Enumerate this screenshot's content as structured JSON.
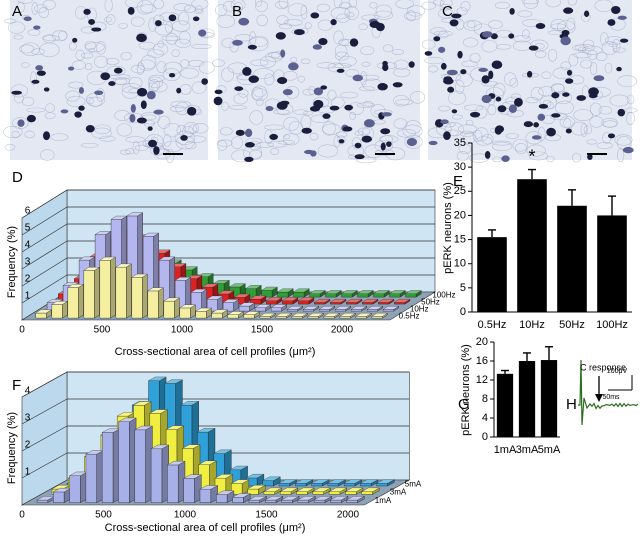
{
  "images": [
    {
      "label": "A"
    },
    {
      "label": "B"
    },
    {
      "label": "C"
    }
  ],
  "chart_data": [
    {
      "type": "bar3d",
      "label": "D",
      "y_label": "Frequency (%)",
      "x_label": "Cross-sectional area of cell profiles (μm²)",
      "x": [
        100,
        200,
        300,
        400,
        500,
        600,
        700,
        800,
        900,
        1000,
        1100,
        1200,
        1300,
        1400,
        1500,
        1600,
        1700,
        1800,
        1900,
        2000,
        2100,
        2200
      ],
      "xlim": [
        0,
        2300
      ],
      "xticks": [
        0,
        500,
        1000,
        1500,
        2000
      ],
      "ylim": [
        0,
        6
      ],
      "yticks": [
        1,
        2,
        3,
        4,
        5,
        6
      ],
      "grid": true,
      "series": [
        {
          "name": "0.5Hz",
          "color": "#f4efa0",
          "values": [
            0.3,
            0.8,
            1.8,
            2.8,
            3.4,
            3.0,
            2.4,
            1.6,
            1.0,
            0.6,
            0.4,
            0.3,
            0.2,
            0.2,
            0.1,
            0.1,
            0.1,
            0.1,
            0.1,
            0.1,
            0.1,
            0.1
          ]
        },
        {
          "name": "10Hz",
          "color": "#b4b6f0",
          "values": [
            0.5,
            1.5,
            3.0,
            4.5,
            5.4,
            5.6,
            4.4,
            3.0,
            1.8,
            1.1,
            0.7,
            0.5,
            0.3,
            0.2,
            0.2,
            0.1,
            0.1,
            0.1,
            0.1,
            0.1,
            0.1,
            0.1
          ]
        },
        {
          "name": "50Hz",
          "color": "#dd2020",
          "values": [
            0.6,
            1.5,
            2.8,
            3.8,
            4.3,
            3.9,
            3.0,
            2.2,
            1.5,
            1.0,
            0.6,
            0.4,
            0.3,
            0.2,
            0.2,
            0.2,
            0.1,
            0.1,
            0.1,
            0.1,
            0.1,
            0.1
          ]
        },
        {
          "name": "100Hz",
          "color": "#2f9e35",
          "values": [
            0.4,
            1.0,
            1.8,
            2.4,
            2.7,
            2.5,
            2.0,
            1.6,
            1.2,
            0.8,
            0.6,
            0.5,
            0.4,
            0.3,
            0.3,
            0.2,
            0.2,
            0.2,
            0.2,
            0.2,
            0.2,
            0.2
          ]
        }
      ]
    },
    {
      "type": "bar",
      "label": "E",
      "y_label": "pERK neurons (%)",
      "categories": [
        "0.5Hz",
        "10Hz",
        "50Hz",
        "100Hz"
      ],
      "values": [
        15.5,
        27.5,
        22,
        20
      ],
      "errors": [
        1.5,
        2,
        3.3,
        4
      ],
      "color": "#000000",
      "annotation": "*",
      "ylim": [
        0,
        35
      ],
      "yticks": [
        0,
        5,
        10,
        15,
        20,
        25,
        30,
        35
      ]
    },
    {
      "type": "bar3d",
      "label": "F",
      "y_label": "Frequency (%)",
      "x_label": "Cross-sectional area of cell profiles (μm²)",
      "x": [
        100,
        200,
        300,
        400,
        500,
        600,
        700,
        800,
        900,
        1000,
        1100,
        1200,
        1300,
        1400,
        1500,
        1600,
        1700,
        1800,
        1900,
        2000
      ],
      "xlim": [
        0,
        2100
      ],
      "xticks": [
        0,
        500,
        1000,
        1500,
        2000
      ],
      "ylim": [
        0,
        4
      ],
      "yticks": [
        1,
        2,
        3,
        4
      ],
      "grid": true,
      "series": [
        {
          "name": "1mA",
          "color": "#a8b0e8",
          "values": [
            0.1,
            0.4,
            1.0,
            1.8,
            2.6,
            3.0,
            2.7,
            2.0,
            1.4,
            0.9,
            0.5,
            0.3,
            0.2,
            0.1,
            0.1,
            0.1,
            0.1,
            0.1,
            0.1,
            0.1
          ]
        },
        {
          "name": "3mA",
          "color": "#f0ee40",
          "values": [
            0.2,
            0.6,
            1.4,
            2.2,
            2.9,
            3.3,
            3.0,
            2.4,
            1.7,
            1.1,
            0.6,
            0.4,
            0.2,
            0.1,
            0.1,
            0.1,
            0.1,
            0.1,
            0.1,
            0.1
          ]
        },
        {
          "name": "5mA",
          "color": "#2fa0d8",
          "values": [
            0.1,
            0.4,
            1.0,
            2.0,
            3.0,
            3.9,
            3.8,
            3.0,
            2.0,
            1.2,
            0.6,
            0.3,
            0.2,
            0.1,
            0.1,
            0.1,
            0.1,
            0.1,
            0.1,
            0.1
          ]
        }
      ]
    },
    {
      "type": "bar",
      "label": "G",
      "y_label": "pERK neurons (%)",
      "categories": [
        "1mA",
        "3mA",
        "5mA"
      ],
      "values": [
        13.3,
        16,
        16.2
      ],
      "errors": [
        0.7,
        1.7,
        2.8
      ],
      "color": "#000000",
      "ylim": [
        0,
        20
      ],
      "yticks": [
        0,
        4,
        8,
        12,
        16,
        20
      ]
    },
    {
      "type": "trace",
      "label": "H",
      "annotation": "C response",
      "scale_y": "100μV",
      "scale_x": "50ms"
    }
  ]
}
